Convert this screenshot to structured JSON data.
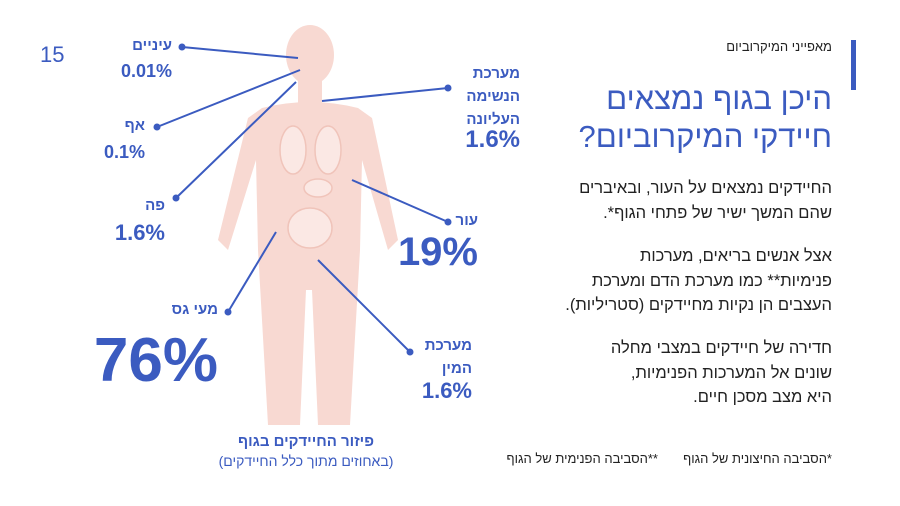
{
  "page_number": "15",
  "header": {
    "section": "מאפייני המיקרוביום",
    "title_lines": [
      "היכן בגוף נמצאים",
      "חיידקי המיקרוביום?"
    ]
  },
  "paragraphs": [
    [
      "החיידקים נמצאים על העור, ובאיברים",
      "שהם המשך ישיר של פתחי הגוף*."
    ],
    [
      "אצל אנשים בריאים, מערכות",
      "פנימיות** כמו מערכת הדם ומערכת",
      "העצבים הן נקיות מחיידקים (סטריליות)."
    ],
    [
      "חדירה של חיידקים במצבי מחלה",
      "שונים אל המערכות הפנימיות,",
      "היא מצב מסכן חיים."
    ]
  ],
  "footnotes": [
    "*הסביבה החיצונית של הגוף",
    "**הסביבה הפנימית של הגוף"
  ],
  "body_labels": [
    {
      "label_lines": [
        "עיניים"
      ],
      "value": "0.01%"
    },
    {
      "label_lines": [
        "אף"
      ],
      "value": "0.1%"
    },
    {
      "label_lines": [
        "פה"
      ],
      "value": "1.6%"
    },
    {
      "label_lines": [
        "מעי גס"
      ],
      "value": "76%"
    },
    {
      "label_lines": [
        "מערכת",
        "הנשימה",
        "העליונה"
      ],
      "value": "1.6%"
    },
    {
      "label_lines": [
        "עור"
      ],
      "value": "19%"
    },
    {
      "label_lines": [
        "מערכת",
        "המין"
      ],
      "value": "1.6%"
    }
  ],
  "caption": {
    "title": "פיזור החיידקים בגוף",
    "subtitle": "(באחוזים מתוך כלל החיידקים)"
  }
}
